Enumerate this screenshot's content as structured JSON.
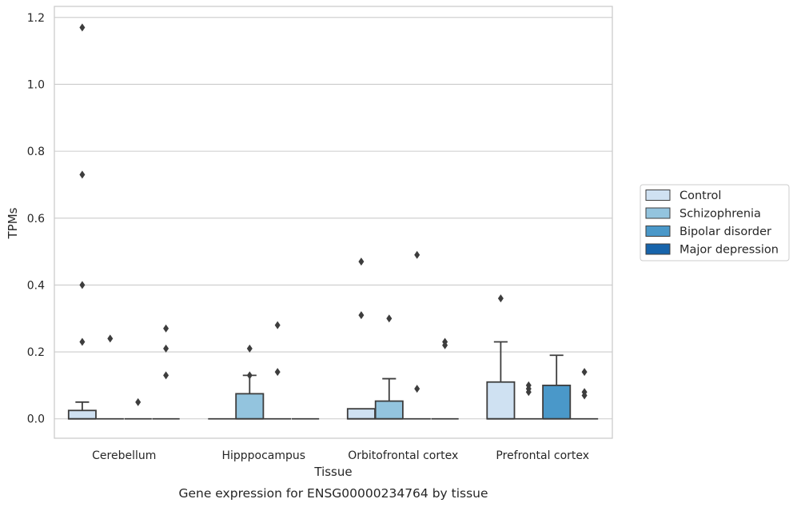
{
  "chart_data": {
    "type": "box",
    "caption": "Gene expression for ENSG00000234764 by tissue",
    "xlabel": "Tissue",
    "ylabel": "TPMs",
    "ylim": [
      -0.058,
      1.233
    ],
    "yticks": [
      0.0,
      0.2,
      0.4,
      0.6,
      0.8,
      1.0,
      1.2
    ],
    "ytick_labels": [
      "0.0",
      "0.2",
      "0.4",
      "0.6",
      "0.8",
      "1.0",
      "1.2"
    ],
    "grid": "horizontal",
    "legend_position": "right",
    "categories": [
      "Cerebellum",
      "Hipppocampus",
      "Orbitofrontal cortex",
      "Prefrontal cortex"
    ],
    "series": [
      {
        "name": "Control",
        "color": "#cfe1f2",
        "boxes": [
          {
            "q1": 0.0,
            "median": 0.0,
            "q3": 0.025,
            "whisker_low": 0.0,
            "whisker_high": 0.05,
            "outliers": [
              1.17,
              0.73,
              0.4,
              0.23
            ]
          },
          {
            "q1": 0.0,
            "median": 0.0,
            "q3": 0.0,
            "whisker_low": 0.0,
            "whisker_high": 0.0,
            "outliers": []
          },
          {
            "q1": 0.0,
            "median": 0.0,
            "q3": 0.03,
            "whisker_low": 0.0,
            "whisker_high": 0.03,
            "outliers": [
              0.47,
              0.31
            ]
          },
          {
            "q1": 0.0,
            "median": 0.0,
            "q3": 0.11,
            "whisker_low": 0.0,
            "whisker_high": 0.23,
            "outliers": [
              0.36
            ]
          }
        ]
      },
      {
        "name": "Schizophrenia",
        "color": "#93c4de",
        "boxes": [
          {
            "q1": 0.0,
            "median": 0.0,
            "q3": 0.0,
            "whisker_low": 0.0,
            "whisker_high": 0.0,
            "outliers": [
              0.24
            ]
          },
          {
            "q1": 0.0,
            "median": 0.0,
            "q3": 0.075,
            "whisker_low": 0.0,
            "whisker_high": 0.13,
            "outliers": [
              0.21,
              0.13
            ]
          },
          {
            "q1": 0.0,
            "median": 0.0,
            "q3": 0.053,
            "whisker_low": 0.0,
            "whisker_high": 0.12,
            "outliers": [
              0.3
            ]
          },
          {
            "q1": 0.0,
            "median": 0.0,
            "q3": 0.0,
            "whisker_low": 0.0,
            "whisker_high": 0.0,
            "outliers": [
              0.1,
              0.09,
              0.08
            ]
          }
        ]
      },
      {
        "name": "Bipolar disorder",
        "color": "#4a98c9",
        "boxes": [
          {
            "q1": 0.0,
            "median": 0.0,
            "q3": 0.0,
            "whisker_low": 0.0,
            "whisker_high": 0.0,
            "outliers": [
              0.05
            ]
          },
          {
            "q1": 0.0,
            "median": 0.0,
            "q3": 0.0,
            "whisker_low": 0.0,
            "whisker_high": 0.0,
            "outliers": [
              0.28,
              0.14
            ]
          },
          {
            "q1": 0.0,
            "median": 0.0,
            "q3": 0.0,
            "whisker_low": 0.0,
            "whisker_high": 0.0,
            "outliers": [
              0.49,
              0.09
            ]
          },
          {
            "q1": 0.0,
            "median": 0.0,
            "q3": 0.1,
            "whisker_low": 0.0,
            "whisker_high": 0.19,
            "outliers": []
          }
        ]
      },
      {
        "name": "Major depression",
        "color": "#1764ab",
        "boxes": [
          {
            "q1": 0.0,
            "median": 0.0,
            "q3": 0.0,
            "whisker_low": 0.0,
            "whisker_high": 0.0,
            "outliers": [
              0.27,
              0.21,
              0.13
            ]
          },
          {
            "q1": 0.0,
            "median": 0.0,
            "q3": 0.0,
            "whisker_low": 0.0,
            "whisker_high": 0.0,
            "outliers": []
          },
          {
            "q1": 0.0,
            "median": 0.0,
            "q3": 0.0,
            "whisker_low": 0.0,
            "whisker_high": 0.0,
            "outliers": [
              0.23,
              0.22
            ]
          },
          {
            "q1": 0.0,
            "median": 0.0,
            "q3": 0.0,
            "whisker_low": 0.0,
            "whisker_high": 0.0,
            "outliers": [
              0.14,
              0.08,
              0.07
            ]
          }
        ]
      }
    ]
  }
}
